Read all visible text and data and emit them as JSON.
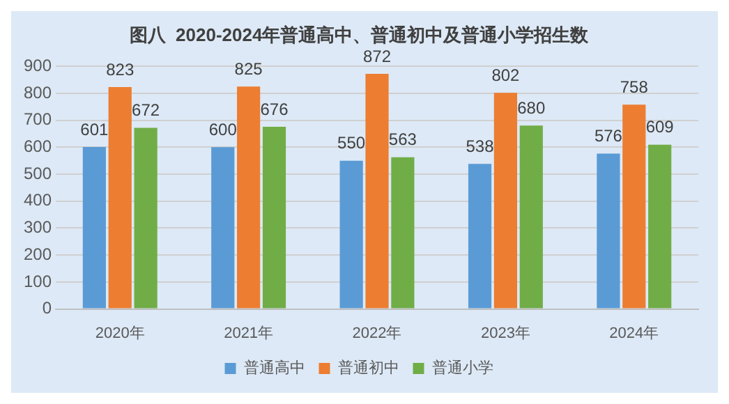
{
  "chart_data": {
    "type": "bar",
    "title": "图八  2020-2024年普通高中、普通初中及普通小学招生数",
    "categories": [
      "2020年",
      "2021年",
      "2022年",
      "2023年",
      "2024年"
    ],
    "series": [
      {
        "name": "普通高中",
        "color": "#5b9bd5",
        "values": [
          601,
          600,
          550,
          538,
          576
        ]
      },
      {
        "name": "普通初中",
        "color": "#ed7d31",
        "values": [
          823,
          825,
          872,
          802,
          758
        ]
      },
      {
        "name": "普通小学",
        "color": "#70ad47",
        "values": [
          672,
          676,
          563,
          680,
          609
        ]
      }
    ],
    "ylim": [
      0,
      900
    ],
    "yticks": [
      0,
      100,
      200,
      300,
      400,
      500,
      600,
      700,
      800,
      900
    ],
    "grid": "y",
    "legend": "bottom",
    "data_labels": true
  }
}
